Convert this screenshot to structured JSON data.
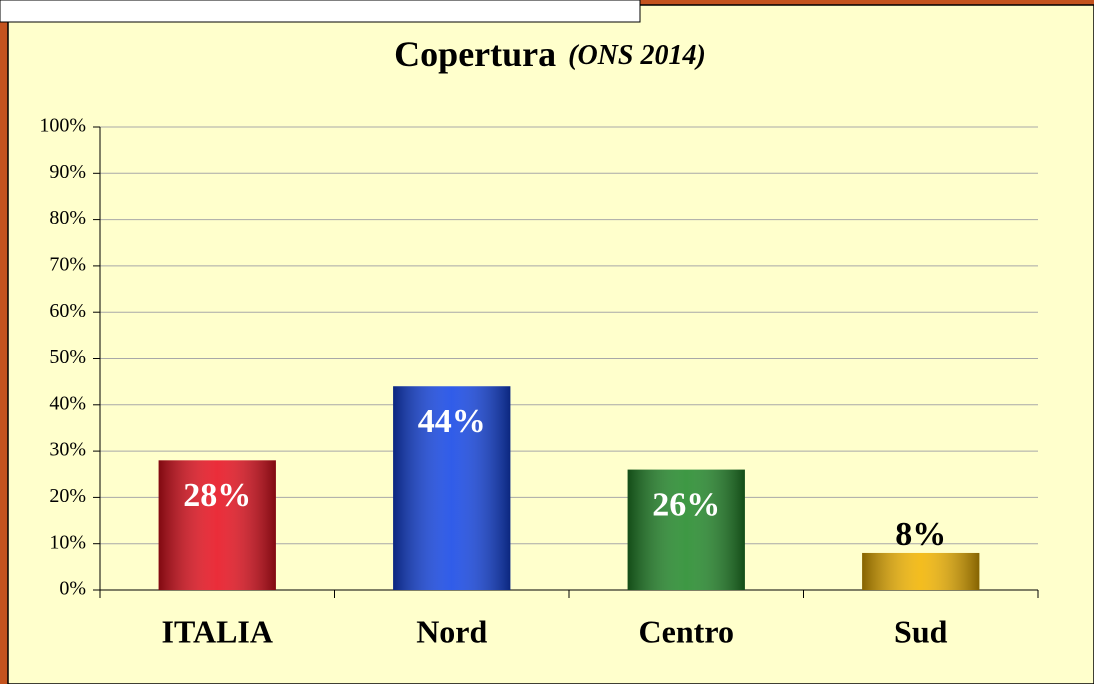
{
  "chart_data": {
    "type": "bar",
    "title": "Copertura",
    "subtitle": "(ONS 2014)",
    "categories": [
      "ITALIA",
      "Nord",
      "Centro",
      "Sud"
    ],
    "values": [
      28,
      44,
      26,
      8
    ],
    "value_labels": [
      "28%",
      "44%",
      "26%",
      "8%"
    ],
    "colors": [
      "#e8101e",
      "#1446e6",
      "#238a2a",
      "#f2b400"
    ],
    "ylim": [
      0,
      100
    ],
    "yticks": [
      {
        "value": 0,
        "label": "0%"
      },
      {
        "value": 10,
        "label": "10%"
      },
      {
        "value": 20,
        "label": "20%"
      },
      {
        "value": 30,
        "label": "30%"
      },
      {
        "value": 40,
        "label": "40%"
      },
      {
        "value": 50,
        "label": "50%"
      },
      {
        "value": 60,
        "label": "60%"
      },
      {
        "value": 70,
        "label": "70%"
      },
      {
        "value": 80,
        "label": "80%"
      },
      {
        "value": 90,
        "label": "90%"
      },
      {
        "value": 100,
        "label": "100%"
      }
    ],
    "grid": true
  }
}
